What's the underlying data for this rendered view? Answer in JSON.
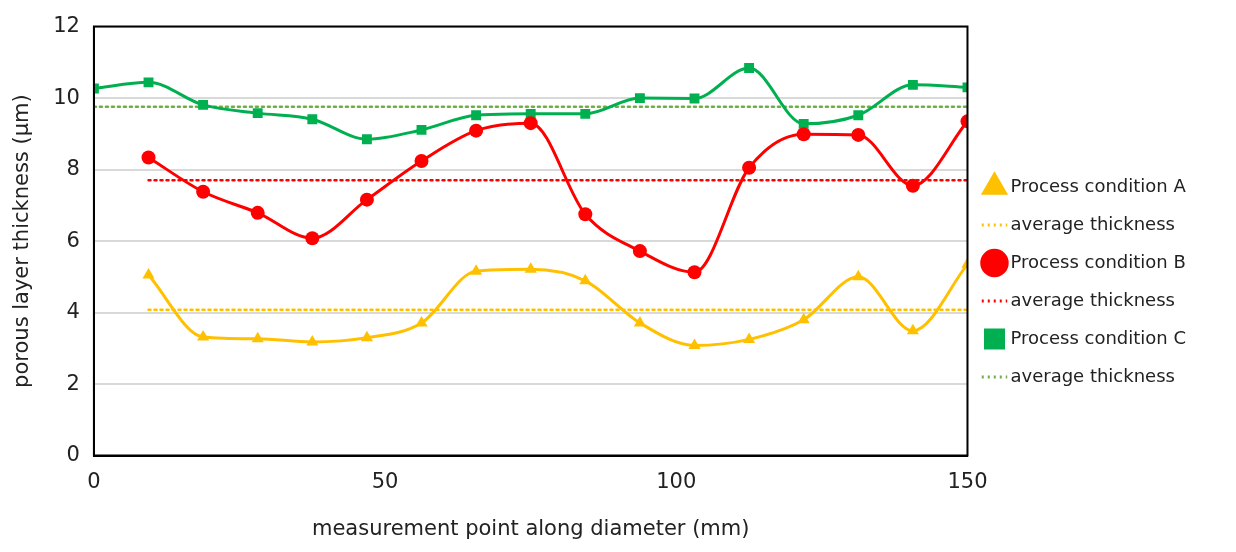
{
  "chart_data": {
    "type": "line",
    "xlabel": "measurement point along diameter (mm)",
    "ylabel": "porous layer thickness (µm)",
    "xlim": [
      0,
      150
    ],
    "xticks": [
      0,
      50,
      100,
      150
    ],
    "ylim": [
      0,
      12
    ],
    "yticks": [
      0,
      2,
      4,
      6,
      8,
      10,
      12
    ],
    "grid": "y",
    "legend": "right",
    "series": [
      {
        "name": "Process condition A",
        "type": "line",
        "color": "#ffc000",
        "marker": "triangle",
        "line_style": "solid",
        "x": [
          9.375,
          18.75,
          28.125,
          37.5,
          46.875,
          56.25,
          65.625,
          75,
          84.375,
          93.75,
          103.125,
          112.5,
          121.875,
          131.25,
          140.625,
          150
        ],
        "values": [
          5.05,
          3.32,
          3.27,
          3.18,
          3.3,
          3.71,
          5.16,
          5.21,
          4.89,
          3.71,
          3.08,
          3.25,
          3.8,
          5.0,
          3.49,
          5.35
        ]
      },
      {
        "name": "average thickness",
        "type": "line",
        "color": "#ffc000",
        "marker": "none",
        "line_style": "dotted",
        "x": [
          9.375,
          150
        ],
        "values": [
          4.08,
          4.08
        ]
      },
      {
        "name": "Process condition B",
        "type": "line",
        "color": "#ff0000",
        "marker": "circle",
        "line_style": "solid",
        "x": [
          9.375,
          18.75,
          28.125,
          37.5,
          46.875,
          56.25,
          65.625,
          75,
          84.375,
          93.75,
          103.125,
          112.5,
          121.875,
          131.25,
          140.625,
          150
        ],
        "values": [
          8.34,
          7.38,
          6.79,
          6.08,
          7.16,
          8.24,
          9.09,
          9.3,
          6.75,
          5.72,
          5.13,
          8.05,
          8.99,
          8.97,
          7.55,
          9.35
        ]
      },
      {
        "name": "average thickness",
        "type": "line",
        "color": "#ff0000",
        "marker": "none",
        "line_style": "dotted",
        "x": [
          9.375,
          150
        ],
        "values": [
          7.7,
          7.7
        ]
      },
      {
        "name": "Process condition C",
        "type": "line",
        "color": "#00b050",
        "marker": "square",
        "line_style": "solid",
        "x": [
          0,
          9.375,
          18.75,
          28.125,
          37.5,
          46.875,
          56.25,
          65.625,
          75,
          84.375,
          93.75,
          103.125,
          112.5,
          121.875,
          131.25,
          140.625,
          150
        ],
        "values": [
          10.27,
          10.44,
          9.81,
          9.58,
          9.41,
          8.85,
          9.11,
          9.52,
          9.56,
          9.56,
          10.0,
          9.99,
          10.84,
          9.28,
          9.52,
          10.37,
          10.3
        ]
      },
      {
        "name": "average thickness",
        "type": "line",
        "color": "#70ad47",
        "marker": "none",
        "line_style": "dotted",
        "x": [
          0,
          150
        ],
        "values": [
          9.76,
          9.76
        ]
      }
    ]
  }
}
